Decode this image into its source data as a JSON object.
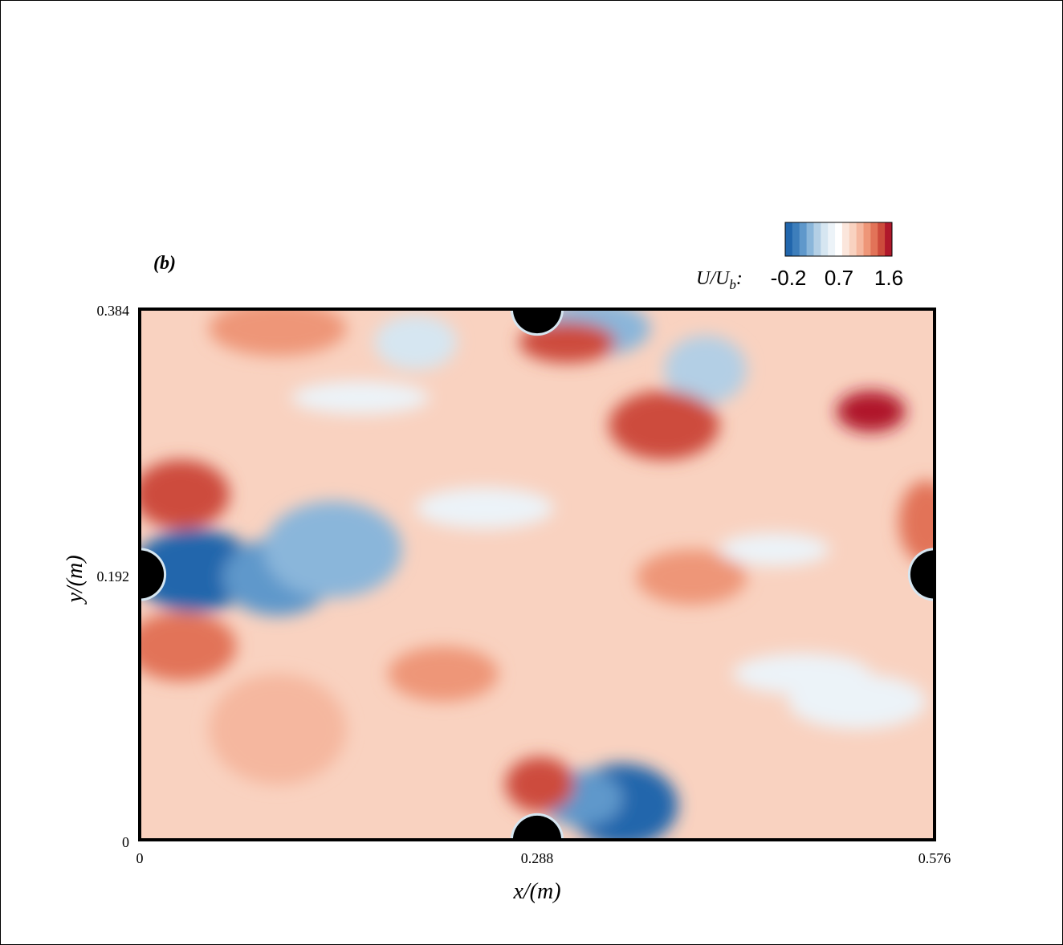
{
  "panel_label": "(b)",
  "colors": {
    "levels": [
      "#2166ac",
      "#3d7ebb",
      "#5f98cb",
      "#8ab6da",
      "#b3cfe5",
      "#d6e6f1",
      "#ecf3f8",
      "#ffffff",
      "#fbe6dc",
      "#f9d2c0",
      "#f5b79f",
      "#ee9678",
      "#e27358",
      "#cd4b3c",
      "#b0182b"
    ],
    "cylinder": "#000000"
  },
  "colorbar": {
    "variable_main": "U/U",
    "variable_sub": "b",
    "variable_suffix": ":",
    "tick_labels": [
      "-0.2",
      "0.7",
      "1.6"
    ],
    "min": -0.2,
    "max": 1.6
  },
  "chart_data": {
    "type": "heatmap",
    "title": "",
    "xlabel": "x/(m)",
    "ylabel": "y/(m)",
    "xlim": [
      0,
      0.576
    ],
    "ylim": [
      0,
      0.384
    ],
    "x_ticks": [
      0,
      0.288,
      0.576
    ],
    "x_tick_labels": [
      "0",
      "0.288",
      "0.576"
    ],
    "y_ticks": [
      0,
      0.192,
      0.384
    ],
    "y_tick_labels": [
      "0",
      "0.192",
      "0.384"
    ],
    "value_range": [
      -0.2,
      1.6
    ],
    "cylinders": [
      {
        "x": 0,
        "y": 0.192,
        "r": 0.0175
      },
      {
        "x": 0.576,
        "y": 0.192,
        "r": 0.0175
      },
      {
        "x": 0.288,
        "y": 0.384,
        "r": 0.0175
      },
      {
        "x": 0.288,
        "y": 0,
        "r": 0.0175
      }
    ],
    "features": [
      {
        "x": 0.04,
        "y": 0.195,
        "value": -0.1,
        "sx": 0.045,
        "sy": 0.03
      },
      {
        "x": 0.1,
        "y": 0.19,
        "value": 0.05,
        "sx": 0.04,
        "sy": 0.028
      },
      {
        "x": 0.14,
        "y": 0.21,
        "value": 0.2,
        "sx": 0.05,
        "sy": 0.035
      },
      {
        "x": 0.35,
        "y": 0.025,
        "value": -0.2,
        "sx": 0.04,
        "sy": 0.03
      },
      {
        "x": 0.32,
        "y": 0.03,
        "value": 0.05,
        "sx": 0.03,
        "sy": 0.02
      },
      {
        "x": 0.33,
        "y": 0.37,
        "value": 0.2,
        "sx": 0.04,
        "sy": 0.02
      },
      {
        "x": 0.41,
        "y": 0.34,
        "value": 0.3,
        "sx": 0.03,
        "sy": 0.025
      },
      {
        "x": 0.2,
        "y": 0.36,
        "value": 0.5,
        "sx": 0.03,
        "sy": 0.02
      },
      {
        "x": 0.16,
        "y": 0.32,
        "value": 0.55,
        "sx": 0.05,
        "sy": 0.012
      },
      {
        "x": 0.03,
        "y": 0.25,
        "value": 1.45,
        "sx": 0.035,
        "sy": 0.025
      },
      {
        "x": 0.03,
        "y": 0.14,
        "value": 1.35,
        "sx": 0.04,
        "sy": 0.025
      },
      {
        "x": 0.1,
        "y": 0.37,
        "value": 1.2,
        "sx": 0.05,
        "sy": 0.02
      },
      {
        "x": 0.31,
        "y": 0.36,
        "value": 1.4,
        "sx": 0.035,
        "sy": 0.015
      },
      {
        "x": 0.38,
        "y": 0.3,
        "value": 1.45,
        "sx": 0.04,
        "sy": 0.025
      },
      {
        "x": 0.53,
        "y": 0.31,
        "value": 1.5,
        "sx": 0.025,
        "sy": 0.015
      },
      {
        "x": 0.29,
        "y": 0.04,
        "value": 1.45,
        "sx": 0.025,
        "sy": 0.02
      },
      {
        "x": 0.57,
        "y": 0.23,
        "value": 1.35,
        "sx": 0.02,
        "sy": 0.03
      },
      {
        "x": 0.4,
        "y": 0.19,
        "value": 1.2,
        "sx": 0.04,
        "sy": 0.02
      },
      {
        "x": 0.1,
        "y": 0.08,
        "value": 1.1,
        "sx": 0.05,
        "sy": 0.04
      },
      {
        "x": 0.25,
        "y": 0.24,
        "value": 0.6,
        "sx": 0.05,
        "sy": 0.015
      },
      {
        "x": 0.48,
        "y": 0.12,
        "value": 0.6,
        "sx": 0.05,
        "sy": 0.015
      },
      {
        "x": 0.46,
        "y": 0.21,
        "value": 0.55,
        "sx": 0.04,
        "sy": 0.012
      },
      {
        "x": 0.52,
        "y": 0.1,
        "value": 0.6,
        "sx": 0.05,
        "sy": 0.02
      },
      {
        "x": 0.22,
        "y": 0.12,
        "value": 1.15,
        "sx": 0.04,
        "sy": 0.02
      }
    ]
  }
}
